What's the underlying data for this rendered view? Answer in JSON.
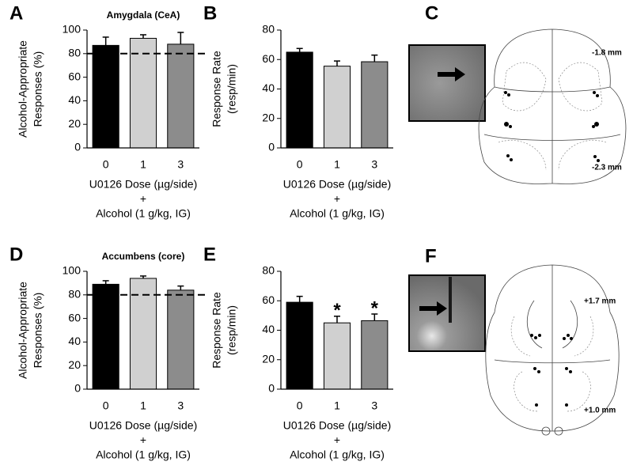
{
  "chart_data": [
    {
      "type": "bar",
      "panel_label": "A",
      "title": "Amygdala (CeA)",
      "ylabel": [
        "Alcohol-Appropriate",
        "Responses (%)"
      ],
      "xlabel": [
        "U0126 Dose (µg/side)",
        "+",
        "Alcohol (1 g/kg, IG)"
      ],
      "categories": [
        "0",
        "1",
        "3"
      ],
      "values": [
        87,
        93,
        88
      ],
      "errors": [
        7,
        3,
        10
      ],
      "colors": [
        "#000000",
        "#d0d0d0",
        "#8c8c8c"
      ],
      "ylim": [
        0,
        100
      ],
      "yticks": [
        0,
        20,
        40,
        60,
        80,
        100
      ],
      "reference_line": 80
    },
    {
      "type": "bar",
      "panel_label": "B",
      "ylabel": [
        "Response Rate",
        "(resp/min)"
      ],
      "xlabel": [
        "U0126 Dose (µg/side)",
        "+",
        "Alcohol (1 g/kg, IG)"
      ],
      "categories": [
        "0",
        "1",
        "3"
      ],
      "values": [
        65,
        55.5,
        58.5
      ],
      "errors": [
        2.5,
        3.5,
        4.5
      ],
      "colors": [
        "#000000",
        "#d0d0d0",
        "#8c8c8c"
      ],
      "ylim": [
        0,
        80
      ],
      "yticks": [
        0,
        20,
        40,
        60,
        80
      ]
    },
    {
      "type": "bar",
      "panel_label": "D",
      "title": "Accumbens (core)",
      "ylabel": [
        "Alcohol-Appropriate",
        "Responses (%)"
      ],
      "xlabel": [
        "U0126 Dose (µg/side)",
        "+",
        "Alcohol (1 g/kg, IG)"
      ],
      "categories": [
        "0",
        "1",
        "3"
      ],
      "values": [
        89,
        94,
        84
      ],
      "errors": [
        3,
        2,
        3.5
      ],
      "colors": [
        "#000000",
        "#d0d0d0",
        "#8c8c8c"
      ],
      "ylim": [
        0,
        100
      ],
      "yticks": [
        0,
        20,
        40,
        60,
        80,
        100
      ],
      "reference_line": 80
    },
    {
      "type": "bar",
      "panel_label": "E",
      "ylabel": [
        "Response Rate",
        "(resp/min)"
      ],
      "xlabel": [
        "U0126 Dose (µg/side)",
        "+",
        "Alcohol (1 g/kg, IG)"
      ],
      "categories": [
        "0",
        "1",
        "3"
      ],
      "values": [
        59,
        45,
        46.5
      ],
      "errors": [
        4,
        4.5,
        4.5
      ],
      "value_annotations": [
        null,
        "*",
        "*"
      ],
      "colors": [
        "#000000",
        "#d0d0d0",
        "#8c8c8c"
      ],
      "ylim": [
        0,
        80
      ],
      "yticks": [
        0,
        20,
        40,
        60,
        80
      ]
    }
  ],
  "diagrams": [
    {
      "panel_label": "C",
      "levels": [
        "-1.8 mm",
        "-2.3 mm"
      ]
    },
    {
      "panel_label": "F",
      "levels": [
        "+1.7 mm",
        "+1.0 mm"
      ]
    }
  ]
}
